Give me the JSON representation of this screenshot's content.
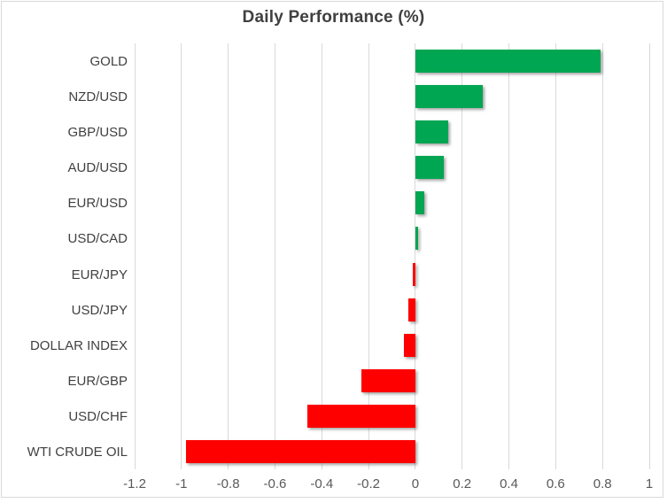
{
  "chart_data": {
    "type": "bar",
    "orientation": "horizontal",
    "title": "Daily Performance (%)",
    "categories": [
      "GOLD",
      "NZD/USD",
      "GBP/USD",
      "AUD/USD",
      "EUR/USD",
      "USD/CAD",
      "EUR/JPY",
      "USD/JPY",
      "DOLLAR INDEX",
      "EUR/GBP",
      "USD/CHF",
      "WTI CRUDE OIL"
    ],
    "values": [
      0.79,
      0.29,
      0.14,
      0.12,
      0.04,
      0.01,
      -0.01,
      -0.03,
      -0.05,
      -0.23,
      -0.46,
      -0.98
    ],
    "xlabel": "",
    "ylabel": "",
    "xlim": [
      -1.2,
      1.0
    ],
    "x_tick_values": [
      -1.2,
      -1,
      -0.8,
      -0.6,
      -0.4,
      -0.2,
      0,
      0.2,
      0.4,
      0.6,
      0.8,
      1
    ],
    "x_tick_labels": [
      "-1.2",
      "-1",
      "-0.8",
      "-0.6",
      "-0.4",
      "-0.2",
      "0",
      "0.2",
      "0.4",
      "0.6",
      "0.8",
      "1"
    ],
    "grid": "vertical-only",
    "legend": "none",
    "bar_shadow": true,
    "colors": {
      "positive": "#00A651",
      "negative": "#FF0000",
      "gridline": "#D9D9D9",
      "frame_border": "#D9D9D9",
      "title_text": "#404040",
      "category_text": "#404040",
      "tick_text": "#595959",
      "background": "#FFFFFF"
    }
  }
}
